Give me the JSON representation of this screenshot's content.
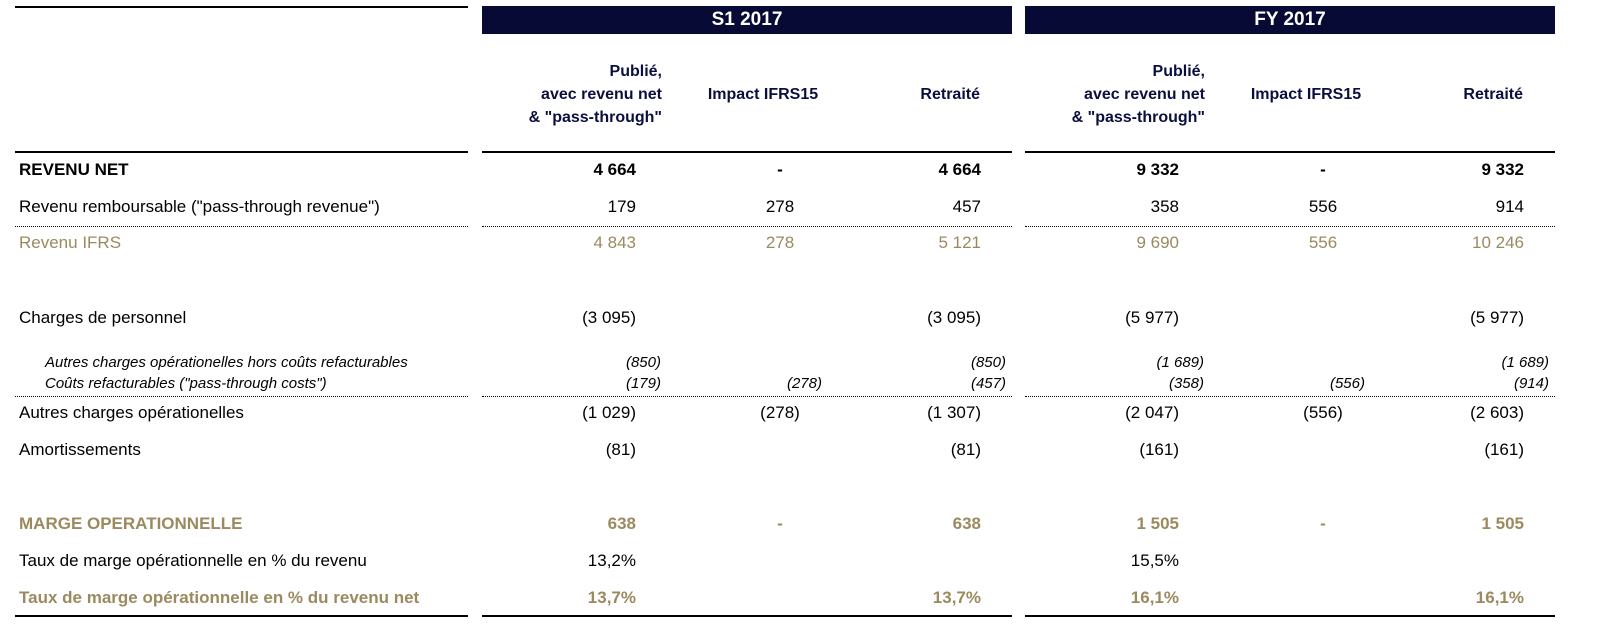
{
  "groups": [
    {
      "title": "S1 2017",
      "columns": [
        "Publié,\navec revenu net\n& \"pass-through\"",
        "Impact IFRS15",
        "Retraité"
      ]
    },
    {
      "title": "FY 2017",
      "columns": [
        "Publié,\navec revenu net\n& \"pass-through\"",
        "Impact IFRS15",
        "Retraité"
      ]
    }
  ],
  "rows": [
    {
      "label": "REVENU NET",
      "values": [
        "4 664",
        "-",
        "4 664",
        "9 332",
        "-",
        "9 332"
      ]
    },
    {
      "label": "Revenu remboursable (\"pass-through revenue\")",
      "values": [
        "179",
        "278",
        "457",
        "358",
        "556",
        "914"
      ]
    },
    {
      "label": "Revenu IFRS",
      "values": [
        "4 843",
        "278",
        "5 121",
        "9 690",
        "556",
        "10 246"
      ]
    },
    {
      "label": "Charges de personnel",
      "values": [
        "(3 095)",
        null,
        "(3 095)",
        "(5 977)",
        null,
        "(5 977)"
      ]
    },
    {
      "label": "Autres charges opérationelles hors coûts refacturables",
      "values": [
        "(850)",
        null,
        "(850)",
        "(1 689)",
        null,
        "(1 689)"
      ]
    },
    {
      "label": "Coûts refacturables (\"pass-through costs\")",
      "values": [
        "(179)",
        "(278)",
        "(457)",
        "(358)",
        "(556)",
        "(914)"
      ]
    },
    {
      "label": "Autres charges opérationelles",
      "values": [
        "(1 029)",
        "(278)",
        "(1 307)",
        "(2 047)",
        "(556)",
        "(2 603)"
      ]
    },
    {
      "label": "Amortissements",
      "values": [
        "(81)",
        null,
        "(81)",
        "(161)",
        null,
        "(161)"
      ]
    },
    {
      "label": "MARGE OPERATIONNELLE",
      "values": [
        "638",
        "-",
        "638",
        "1 505",
        "-",
        "1 505"
      ]
    },
    {
      "label": "Taux de marge opérationnelle en % du revenu",
      "values": [
        "13,2%",
        null,
        null,
        "15,5%",
        null,
        null
      ]
    },
    {
      "label": "Taux de marge opérationnelle en % du revenu net",
      "values": [
        "13,7%",
        null,
        "13,7%",
        "16,1%",
        null,
        "16,1%"
      ]
    }
  ]
}
